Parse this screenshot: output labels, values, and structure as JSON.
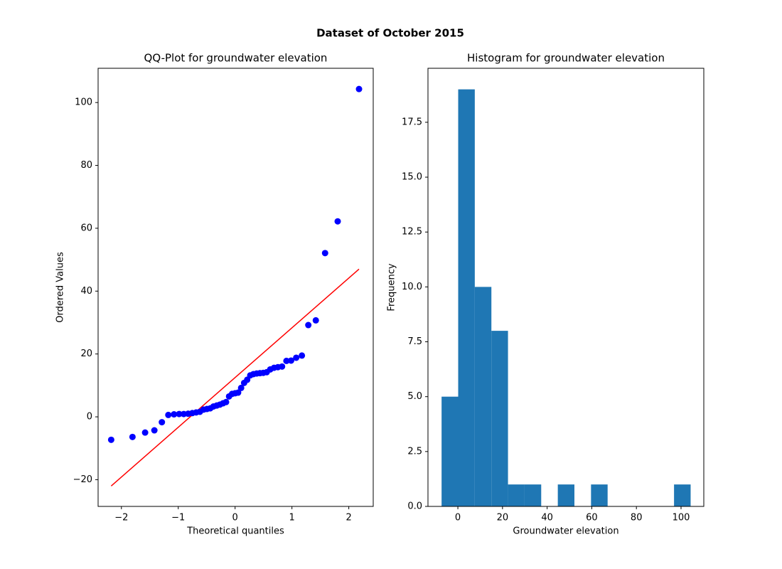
{
  "title": "Dataset of October 2015",
  "chart_data": [
    {
      "type": "scatter",
      "title": "QQ-Plot for groundwater elevation",
      "x_label": "Theoretical quantiles",
      "y_label": "Ordered Values",
      "x": [
        -2.18,
        -1.805,
        -1.583,
        -1.42,
        -1.288,
        -1.175,
        -1.075,
        -0.985,
        -0.903,
        -0.826,
        -0.753,
        -0.685,
        -0.619,
        -0.556,
        -0.496,
        -0.437,
        -0.38,
        -0.323,
        -0.267,
        -0.213,
        -0.159,
        -0.106,
        -0.053,
        0,
        0.053,
        0.106,
        0.159,
        0.213,
        0.267,
        0.323,
        0.38,
        0.437,
        0.496,
        0.556,
        0.619,
        0.685,
        0.753,
        0.826,
        0.903,
        0.985,
        1.075,
        1.175,
        1.288,
        1.42,
        1.583,
        1.805,
        2.18
      ],
      "series": [
        {
          "color": "#0000ff",
          "values": [
            -7.3,
            -6.4,
            -5.0,
            -4.3,
            -1.7,
            0.6,
            0.8,
            0.9,
            0.9,
            1.0,
            1.2,
            1.4,
            1.6,
            2.3,
            2.5,
            2.7,
            3.3,
            3.6,
            3.9,
            4.3,
            4.7,
            6.5,
            7.3,
            7.5,
            7.7,
            9.2,
            10.8,
            11.8,
            13.2,
            13.6,
            13.8,
            13.9,
            14.0,
            14.2,
            15.1,
            15.6,
            15.8,
            16.0,
            17.8,
            17.9,
            18.8,
            19.5,
            29.2,
            30.7,
            52.1,
            62.2,
            104.3
          ]
        }
      ],
      "fit_line": {
        "color": "#ff0000",
        "x": [
          -2.18,
          2.18
        ],
        "y": [
          -22.0,
          47.0
        ]
      },
      "xlim": [
        -2.41,
        2.43
      ],
      "ylim": [
        -28.5,
        110.9
      ],
      "xticks": [
        {
          "value": -2,
          "label": "−2"
        },
        {
          "value": -1,
          "label": "−1"
        },
        0,
        1,
        2
      ],
      "yticks": [
        {
          "value": -20,
          "label": "−20"
        },
        0,
        20,
        40,
        60,
        80,
        100
      ]
    },
    {
      "type": "histogram",
      "title": "Histogram for groundwater elevation",
      "x_label": "Groundwater elevation",
      "y_label": "Frequency",
      "color": "#1f77b4",
      "bins": [
        -7.3,
        0.14,
        7.58,
        15.02,
        22.46,
        29.9,
        37.34,
        44.78,
        52.22,
        59.66,
        67.1,
        74.54,
        81.98,
        89.42,
        96.86,
        104.3
      ],
      "values": [
        5,
        19,
        10,
        8,
        1,
        1,
        0,
        1,
        0,
        1,
        0,
        0,
        0,
        0,
        1
      ],
      "xlim": [
        -13.4,
        110.2
      ],
      "ylim": [
        0,
        19.96
      ],
      "xticks": [
        0,
        20,
        40,
        60,
        80,
        100
      ],
      "yticks": [
        {
          "value": 0,
          "label": "0.0"
        },
        {
          "value": 2.5,
          "label": "2.5"
        },
        {
          "value": 5,
          "label": "5.0"
        },
        {
          "value": 7.5,
          "label": "7.5"
        },
        {
          "value": 10,
          "label": "10.0"
        },
        {
          "value": 12.5,
          "label": "12.5"
        },
        {
          "value": 15,
          "label": "15.0"
        },
        {
          "value": 17.5,
          "label": "17.5"
        }
      ]
    }
  ]
}
